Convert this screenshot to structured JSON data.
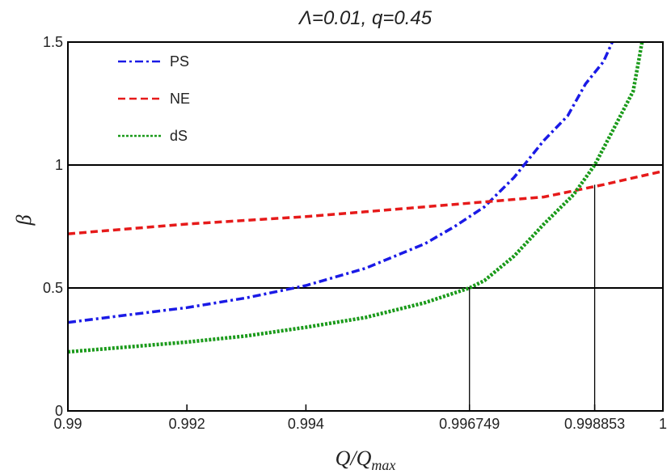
{
  "chart_data": {
    "type": "line",
    "title": "Λ=0.01, q=0.45",
    "xlabel": {
      "main": "Q/Q",
      "sub": "max"
    },
    "ylabel": "β",
    "xlim": [
      0.99,
      1.0
    ],
    "ylim": [
      0,
      1.5
    ],
    "x_ticks": [
      0.99,
      0.992,
      0.994,
      0.996749,
      0.998853,
      1.0
    ],
    "x_tick_labels": [
      "0.99",
      "0.992",
      "0.994",
      "0.996749",
      "0.998853",
      "1"
    ],
    "y_ticks": [
      0,
      0.5,
      1,
      1.5
    ],
    "y_tick_labels": [
      "0",
      "0.5",
      "1",
      "1.5"
    ],
    "hlines": [
      0.5,
      1.0
    ],
    "vlines": [
      {
        "x": 0.996749,
        "ymax": 0.5
      },
      {
        "x": 0.998853,
        "ymax": 0.92
      }
    ],
    "legend_position": "top-left",
    "series": [
      {
        "name": "PS",
        "color": "#1a1ae6",
        "style": "dashdot",
        "x": [
          0.99,
          0.991,
          0.992,
          0.993,
          0.994,
          0.995,
          0.996,
          0.9965,
          0.997,
          0.9975,
          0.998,
          0.9984,
          0.9987,
          0.999,
          0.99915
        ],
        "y": [
          0.36,
          0.39,
          0.42,
          0.46,
          0.51,
          0.58,
          0.68,
          0.75,
          0.83,
          0.95,
          1.1,
          1.2,
          1.33,
          1.42,
          1.5
        ]
      },
      {
        "name": "NE",
        "color": "#e61a1a",
        "style": "dashed",
        "x": [
          0.99,
          0.991,
          0.992,
          0.993,
          0.994,
          0.995,
          0.996,
          0.997,
          0.998,
          0.999,
          1.0
        ],
        "y": [
          0.72,
          0.74,
          0.76,
          0.775,
          0.79,
          0.81,
          0.83,
          0.85,
          0.87,
          0.92,
          0.975
        ]
      },
      {
        "name": "dS",
        "color": "#1a9a1a",
        "style": "dotted",
        "x": [
          0.99,
          0.991,
          0.992,
          0.993,
          0.994,
          0.995,
          0.996,
          0.9965,
          0.996749,
          0.997,
          0.9975,
          0.998,
          0.9985,
          0.998853,
          0.9992,
          0.9995,
          0.99965
        ],
        "y": [
          0.24,
          0.26,
          0.28,
          0.305,
          0.34,
          0.38,
          0.44,
          0.48,
          0.5,
          0.53,
          0.63,
          0.76,
          0.88,
          1.0,
          1.16,
          1.3,
          1.5
        ]
      }
    ]
  }
}
